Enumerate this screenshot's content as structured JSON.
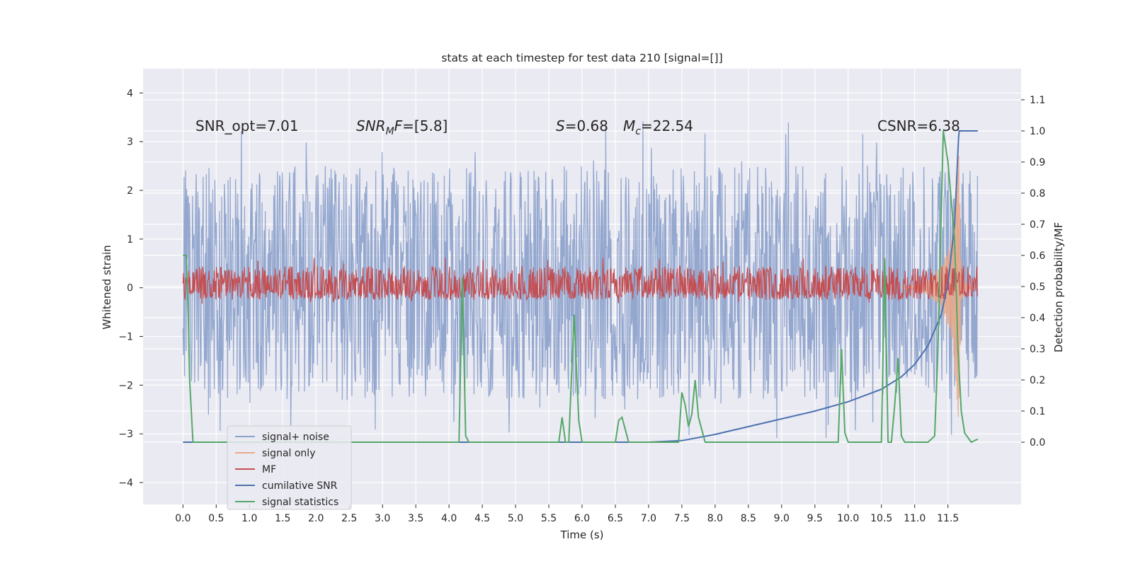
{
  "chart_data": {
    "type": "line",
    "title": "stats at each timestep for test data 210 [signal=[]]",
    "xlabel": "Time (s)",
    "ylabel_left": "Whitened strain",
    "ylabel_right": "Detection probability/MF",
    "xlim": [
      -0.6,
      12.6
    ],
    "ylim_left": [
      -4.45,
      4.5
    ],
    "ylim_right": [
      -0.2,
      1.2
    ],
    "x_ticks": [
      "0.0",
      "0.5",
      "1.0",
      "1.5",
      "2.0",
      "2.5",
      "3.0",
      "3.5",
      "4.0",
      "4.5",
      "5.0",
      "5.5",
      "6.0",
      "6.5",
      "7.0",
      "7.5",
      "8.0",
      "8.5",
      "9.0",
      "9.5",
      "10.0",
      "10.5",
      "11.0",
      "11.5"
    ],
    "y_ticks_left": [
      "−4",
      "−3",
      "−2",
      "−1",
      "0",
      "1",
      "2",
      "3",
      "4"
    ],
    "y_ticks_right": [
      "0.0",
      "0.1",
      "0.2",
      "0.3",
      "0.4",
      "0.5",
      "0.6",
      "0.7",
      "0.8",
      "0.9",
      "1.0",
      "1.1"
    ],
    "grid": true,
    "legend_position": "lower-left",
    "annotations": {
      "snr_opt": "SNR_opt=7.01",
      "snr_mf_main": "SNR",
      "snr_mf_sub": "M",
      "snr_mf_tail": "F",
      "snr_mf_value": "=[5.8]",
      "s_symbol": "S",
      "s_value": "=0.68",
      "mc_symbol": "M",
      "mc_sub": "c",
      "mc_value": "=22.54",
      "csnr": "CSNR=6.38"
    },
    "series": [
      {
        "name": "signal+ noise",
        "axis": "left",
        "color": "#8ea3cc",
        "envelope_upper": 2.5,
        "envelope_lower": -2.3,
        "x_range": [
          0.0,
          11.95
        ]
      },
      {
        "name": "signal only",
        "axis": "left",
        "color": "#e8a98a",
        "x": [
          10.8,
          11.0,
          11.2,
          11.4,
          11.55,
          11.62,
          11.66,
          11.7,
          11.8,
          11.95
        ],
        "amplitude": [
          0.02,
          0.05,
          0.15,
          0.45,
          1.0,
          2.0,
          3.8,
          0.3,
          0.02,
          0.0
        ]
      },
      {
        "name": "MF",
        "axis": "left",
        "color": "#c44e52",
        "envelope_upper": 0.45,
        "envelope_lower": -0.25,
        "x_range": [
          0.0,
          11.95
        ]
      },
      {
        "name": "cumilative SNR",
        "axis": "right",
        "color": "#4c72b0",
        "x": [
          0.0,
          7.0,
          7.5,
          8.0,
          8.5,
          9.0,
          9.5,
          10.0,
          10.5,
          10.8,
          11.0,
          11.2,
          11.4,
          11.5,
          11.6,
          11.66,
          11.67,
          11.95
        ],
        "y": [
          0.0,
          0.0,
          0.005,
          0.025,
          0.05,
          0.075,
          0.1,
          0.13,
          0.17,
          0.21,
          0.25,
          0.31,
          0.41,
          0.51,
          0.7,
          0.98,
          1.0,
          1.0
        ]
      },
      {
        "name": "signal statistics",
        "axis": "right",
        "color": "#55a868",
        "x": [
          0.0,
          0.05,
          0.08,
          0.1,
          0.15,
          0.2,
          4.15,
          4.2,
          4.25,
          4.3,
          5.65,
          5.7,
          5.75,
          5.8,
          5.88,
          5.95,
          6.0,
          6.5,
          6.55,
          6.6,
          6.7,
          7.45,
          7.5,
          7.55,
          7.6,
          7.65,
          7.7,
          7.75,
          7.85,
          9.85,
          9.9,
          9.95,
          10.0,
          10.1,
          10.5,
          10.55,
          10.6,
          10.65,
          10.7,
          10.75,
          10.8,
          10.85,
          10.95,
          11.05,
          11.2,
          11.3,
          11.35,
          11.4,
          11.43,
          11.5,
          11.6,
          11.65,
          11.7,
          11.75,
          11.85,
          11.95
        ],
        "y": [
          0.6,
          0.6,
          0.4,
          0.2,
          0.0,
          0.0,
          0.0,
          0.53,
          0.02,
          0.0,
          0.0,
          0.08,
          0.0,
          0.0,
          0.41,
          0.07,
          0.0,
          0.0,
          0.07,
          0.08,
          0.0,
          0.0,
          0.16,
          0.12,
          0.05,
          0.09,
          0.2,
          0.08,
          0.0,
          0.0,
          0.3,
          0.03,
          0.0,
          0.0,
          0.0,
          0.59,
          0.0,
          0.0,
          0.12,
          0.27,
          0.02,
          0.0,
          0.0,
          0.0,
          0.0,
          0.02,
          0.3,
          0.75,
          1.0,
          0.9,
          0.65,
          0.3,
          0.1,
          0.03,
          0.0,
          0.01
        ]
      }
    ]
  }
}
